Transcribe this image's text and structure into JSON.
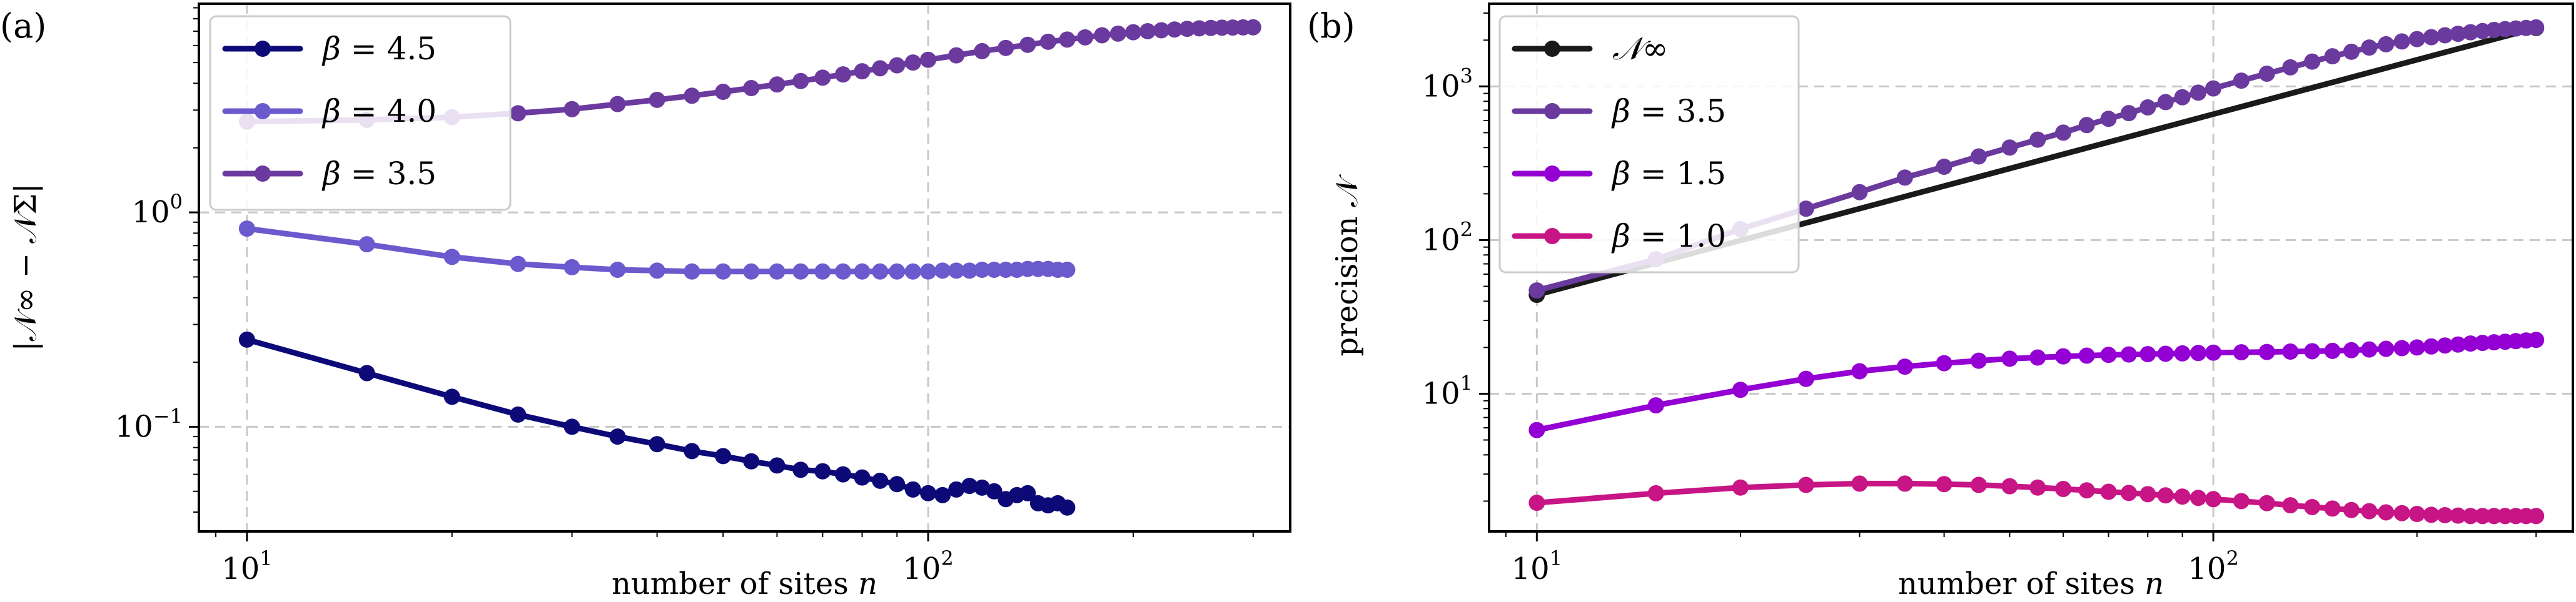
{
  "figure": {
    "panel_a_tag": "(a)",
    "panel_b_tag": "(b)"
  },
  "chart_data": [
    {
      "type": "line",
      "panel": "(a)",
      "title": "",
      "xscale": "log",
      "yscale": "log",
      "xlim": [
        8.5,
        340
      ],
      "ylim": [
        0.0325,
        9.4
      ],
      "xlabel_text": "number of sites",
      "xlabel_var": "n",
      "ylabel": "|𝒩∞ − 𝒩Σ|",
      "x_ticks": [
        {
          "value": 10,
          "base": "10",
          "exp": "1"
        },
        {
          "value": 100,
          "base": "10",
          "exp": "2"
        }
      ],
      "y_ticks": [
        {
          "value": 0.1,
          "base": "10",
          "exp": "−1"
        },
        {
          "value": 1,
          "base": "10",
          "exp": "0"
        }
      ],
      "grid": true,
      "legend_position": "top-left",
      "series": [
        {
          "name": "β = 4.5",
          "sym": "β",
          "val": "4.5",
          "color": "#0d0a78",
          "x": [
            10,
            15,
            20,
            25,
            30,
            35,
            40,
            45,
            50,
            55,
            60,
            65,
            70,
            75,
            80,
            85,
            90,
            95,
            100,
            105,
            110,
            115,
            120,
            125,
            130,
            135,
            140,
            145,
            150,
            155,
            160
          ],
          "y": [
            0.255,
            0.178,
            0.138,
            0.114,
            0.1,
            0.09,
            0.083,
            0.077,
            0.073,
            0.069,
            0.066,
            0.063,
            0.062,
            0.06,
            0.058,
            0.056,
            0.054,
            0.051,
            0.049,
            0.048,
            0.051,
            0.053,
            0.052,
            0.05,
            0.046,
            0.048,
            0.049,
            0.044,
            0.043,
            0.044,
            0.042
          ]
        },
        {
          "name": "β = 4.0",
          "sym": "β",
          "val": "4.0",
          "color": "#6a5acd",
          "x": [
            10,
            15,
            20,
            25,
            30,
            35,
            40,
            45,
            50,
            55,
            60,
            65,
            70,
            75,
            80,
            85,
            90,
            95,
            100,
            105,
            110,
            115,
            120,
            125,
            130,
            135,
            140,
            145,
            150,
            155,
            160
          ],
          "y": [
            0.84,
            0.71,
            0.62,
            0.575,
            0.555,
            0.54,
            0.535,
            0.53,
            0.53,
            0.53,
            0.53,
            0.53,
            0.53,
            0.53,
            0.53,
            0.53,
            0.53,
            0.53,
            0.53,
            0.535,
            0.535,
            0.535,
            0.54,
            0.54,
            0.54,
            0.54,
            0.545,
            0.545,
            0.545,
            0.54,
            0.54
          ]
        },
        {
          "name": "β = 3.5",
          "sym": "β",
          "val": "3.5",
          "color": "#6b3a9e",
          "x": [
            10,
            15,
            20,
            25,
            30,
            35,
            40,
            45,
            50,
            55,
            60,
            65,
            70,
            75,
            80,
            85,
            90,
            95,
            100,
            110,
            120,
            130,
            140,
            150,
            160,
            170,
            180,
            190,
            200,
            210,
            220,
            230,
            240,
            250,
            260,
            270,
            280,
            290,
            300
          ],
          "y": [
            2.65,
            2.7,
            2.78,
            2.9,
            3.03,
            3.2,
            3.35,
            3.5,
            3.65,
            3.8,
            3.95,
            4.1,
            4.25,
            4.4,
            4.55,
            4.7,
            4.85,
            5.0,
            5.15,
            5.4,
            5.65,
            5.85,
            6.05,
            6.25,
            6.4,
            6.55,
            6.7,
            6.82,
            6.92,
            7.0,
            7.07,
            7.13,
            7.18,
            7.22,
            7.25,
            7.27,
            7.28,
            7.29,
            7.3
          ]
        }
      ]
    },
    {
      "type": "line",
      "panel": "(b)",
      "title": "",
      "xscale": "log",
      "yscale": "log",
      "xlim": [
        8.5,
        340
      ],
      "ylim": [
        1.27,
        3450
      ],
      "xlabel_text": "number of sites",
      "xlabel_var": "n",
      "ylabel": "precision 𝒩",
      "x_ticks": [
        {
          "value": 10,
          "base": "10",
          "exp": "1"
        },
        {
          "value": 100,
          "base": "10",
          "exp": "2"
        }
      ],
      "y_ticks": [
        {
          "value": 10,
          "base": "10",
          "exp": "1"
        },
        {
          "value": 100,
          "base": "10",
          "exp": "2"
        },
        {
          "value": 1000,
          "base": "10",
          "exp": "3"
        }
      ],
      "grid": true,
      "legend_position": "top-left",
      "series": [
        {
          "name": "𝒩∞",
          "sym": "𝒩∞",
          "val": "",
          "color": "#1a1a1a",
          "markers": "endpoints",
          "x": [
            10,
            300
          ],
          "y": [
            44,
            2400
          ]
        },
        {
          "name": "β = 3.5",
          "sym": "β",
          "val": "3.5",
          "color": "#6b3a9e",
          "x": [
            10,
            15,
            20,
            25,
            30,
            35,
            40,
            45,
            50,
            55,
            60,
            65,
            70,
            75,
            80,
            85,
            90,
            95,
            100,
            110,
            120,
            130,
            140,
            150,
            160,
            170,
            180,
            190,
            200,
            210,
            220,
            230,
            240,
            250,
            260,
            270,
            280,
            290,
            300
          ],
          "y": [
            47,
            75,
            118,
            160,
            205,
            255,
            300,
            350,
            400,
            450,
            500,
            560,
            615,
            670,
            730,
            790,
            850,
            910,
            970,
            1090,
            1210,
            1330,
            1450,
            1570,
            1680,
            1790,
            1880,
            1960,
            2030,
            2090,
            2150,
            2200,
            2250,
            2290,
            2330,
            2360,
            2380,
            2400,
            2420
          ]
        },
        {
          "name": "β = 1.5",
          "sym": "β",
          "val": "1.5",
          "color": "#9400d3",
          "x": [
            10,
            15,
            20,
            25,
            30,
            35,
            40,
            45,
            50,
            55,
            60,
            65,
            70,
            75,
            80,
            85,
            90,
            95,
            100,
            110,
            120,
            130,
            140,
            150,
            160,
            170,
            180,
            190,
            200,
            210,
            220,
            230,
            240,
            250,
            260,
            270,
            280,
            290,
            300
          ],
          "y": [
            5.8,
            8.4,
            10.6,
            12.5,
            14.0,
            15.0,
            15.8,
            16.4,
            16.9,
            17.2,
            17.5,
            17.7,
            17.9,
            18.0,
            18.1,
            18.2,
            18.3,
            18.4,
            18.5,
            18.6,
            18.7,
            18.8,
            18.9,
            19.0,
            19.2,
            19.4,
            19.6,
            19.8,
            20.0,
            20.3,
            20.6,
            20.9,
            21.2,
            21.4,
            21.6,
            21.8,
            22.0,
            22.2,
            22.4
          ]
        },
        {
          "name": "β = 1.0",
          "sym": "β",
          "val": "1.0",
          "color": "#c71585",
          "x": [
            10,
            15,
            20,
            25,
            30,
            35,
            40,
            45,
            50,
            55,
            60,
            65,
            70,
            75,
            80,
            85,
            90,
            95,
            100,
            110,
            120,
            130,
            140,
            150,
            160,
            170,
            180,
            190,
            200,
            210,
            220,
            230,
            240,
            250,
            260,
            270,
            280,
            290,
            300
          ],
          "y": [
            1.95,
            2.25,
            2.45,
            2.55,
            2.6,
            2.6,
            2.58,
            2.55,
            2.5,
            2.45,
            2.4,
            2.35,
            2.3,
            2.26,
            2.22,
            2.18,
            2.14,
            2.1,
            2.06,
            2.0,
            1.94,
            1.88,
            1.83,
            1.79,
            1.75,
            1.72,
            1.69,
            1.67,
            1.65,
            1.63,
            1.62,
            1.61,
            1.6,
            1.6,
            1.6,
            1.6,
            1.6,
            1.6,
            1.6
          ]
        }
      ]
    }
  ]
}
